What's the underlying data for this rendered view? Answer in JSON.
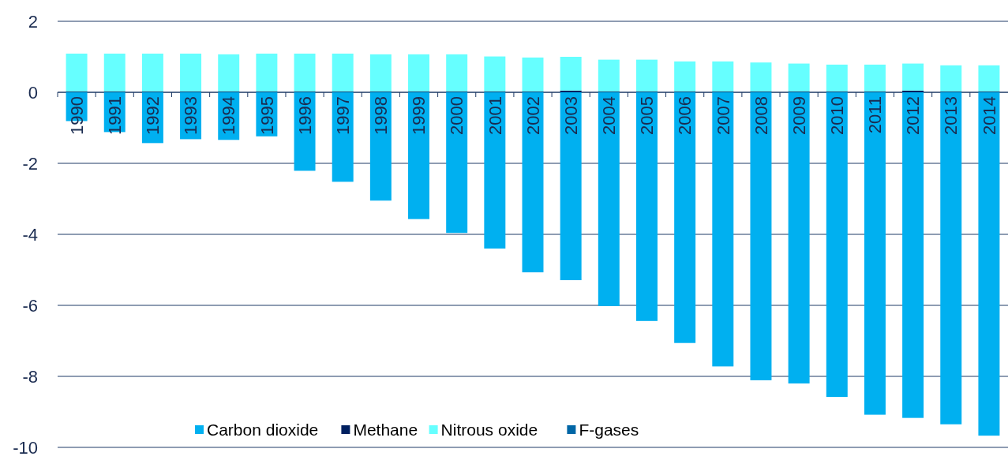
{
  "chart_data": {
    "type": "bar",
    "stacked": true,
    "categories": [
      "1990",
      "1991",
      "1992",
      "1993",
      "1994",
      "1995",
      "1996",
      "1997",
      "1998",
      "1999",
      "2000",
      "2001",
      "2002",
      "2003",
      "2004",
      "2005",
      "2006",
      "2007",
      "2008",
      "2009",
      "2010",
      "2011",
      "2012",
      "2013",
      "2014"
    ],
    "series": [
      {
        "name": "Carbon dioxide",
        "color": "#00b0f0",
        "values": [
          -0.81,
          -1.12,
          -1.43,
          -1.32,
          -1.34,
          -1.24,
          -2.21,
          -2.52,
          -3.05,
          -3.57,
          -3.96,
          -4.4,
          -5.07,
          -5.29,
          -6.02,
          -6.44,
          -7.06,
          -7.72,
          -8.11,
          -8.2,
          -8.58,
          -9.08,
          -9.17,
          -9.35,
          -9.67
        ]
      },
      {
        "name": "Methane",
        "color": "#002060",
        "values": [
          0.02,
          0.02,
          0.02,
          0.02,
          0.02,
          0.02,
          0.02,
          0.02,
          0.02,
          0.02,
          0.02,
          0.02,
          0.02,
          0.05,
          0.02,
          0.02,
          0.02,
          0.02,
          0.02,
          0.02,
          0.02,
          0.02,
          0.05,
          0.02,
          0.02
        ]
      },
      {
        "name": "Nitrous oxide",
        "color": "#66ffff",
        "values": [
          1.07,
          1.07,
          1.07,
          1.07,
          1.05,
          1.07,
          1.07,
          1.07,
          1.05,
          1.05,
          1.05,
          0.99,
          0.96,
          0.95,
          0.9,
          0.9,
          0.85,
          0.85,
          0.82,
          0.79,
          0.76,
          0.76,
          0.76,
          0.74,
          0.74
        ]
      },
      {
        "name": "F-gases",
        "color": "#0066a6",
        "values": [
          0,
          0,
          0,
          0,
          0,
          0,
          0,
          0,
          0,
          0,
          0,
          0,
          0,
          0,
          0,
          0,
          0,
          0,
          0,
          0,
          0,
          0,
          0,
          0,
          0
        ]
      }
    ],
    "ylim": [
      -10,
      2
    ],
    "yticks": [
      -10,
      -8,
      -6,
      -4,
      -2,
      0,
      2
    ],
    "grid": "y",
    "legend": "bottom"
  }
}
